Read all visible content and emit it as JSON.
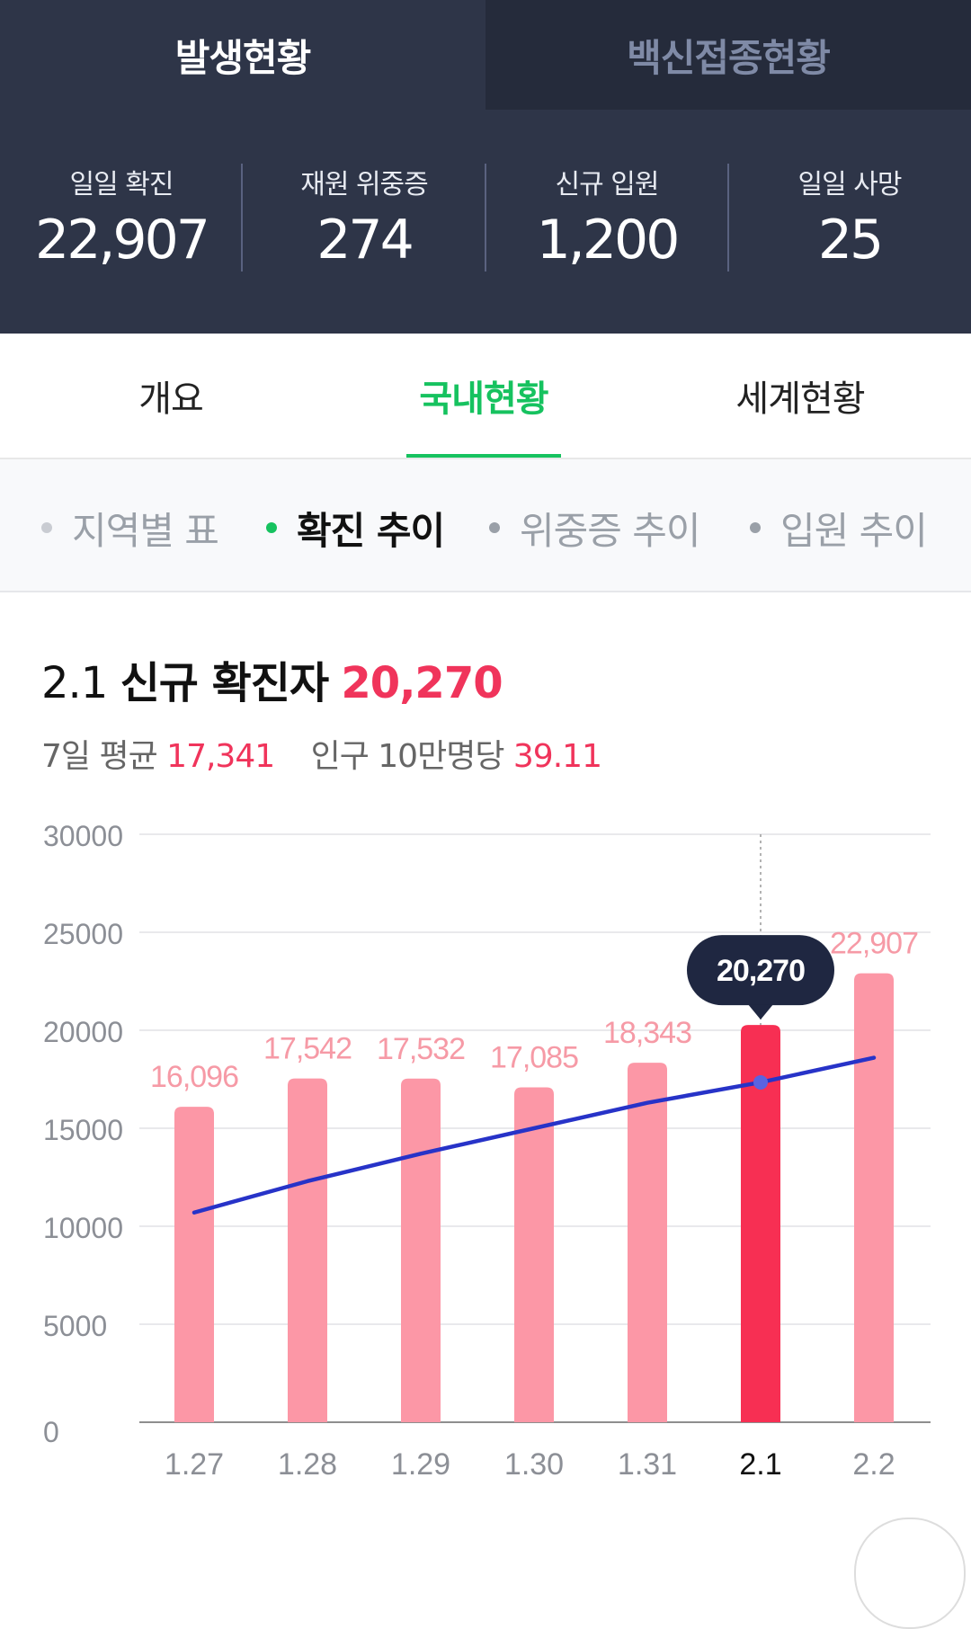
{
  "top_tabs": {
    "active": "발생현황",
    "inactive": "백신접종현황"
  },
  "stats": [
    {
      "label": "일일 확진",
      "value": "22,907"
    },
    {
      "label": "재원 위중증",
      "value": "274"
    },
    {
      "label": "신규 입원",
      "value": "1,200"
    },
    {
      "label": "일일 사망",
      "value": "25"
    }
  ],
  "section_tabs": {
    "items": [
      "개요",
      "국내현황",
      "세계현황"
    ],
    "active_index": 1
  },
  "sub_tabs": {
    "items": [
      "지역별 표",
      "확진 추이",
      "위중증 추이",
      "입원 추이"
    ],
    "active_index": 1
  },
  "headline": {
    "date": "2.1",
    "label": "신규 확진자",
    "value": "20,270",
    "avg_label": "7일 평균",
    "avg_value": "17,341",
    "per_label": "인구 10만명당",
    "per_value": "39.11"
  },
  "colors": {
    "bar": "#fc97a6",
    "bar_selected": "#f72f53",
    "avg_line": "#2733c8",
    "accent_green": "#16c25f",
    "tooltip_bg": "#1f2741",
    "label_pink": "#f69aa6"
  },
  "chart_data": {
    "type": "bar",
    "categories": [
      "1.27",
      "1.28",
      "1.29",
      "1.30",
      "1.31",
      "2.1",
      "2.2"
    ],
    "values": [
      16096,
      17542,
      17532,
      17085,
      18343,
      20270,
      22907
    ],
    "value_labels": [
      "16,096",
      "17,542",
      "17,532",
      "17,085",
      "18,343",
      "20,270",
      "22,907"
    ],
    "selected_index": 5,
    "tooltip_value": "20,270",
    "moving_average": [
      10700,
      12300,
      13700,
      15000,
      16300,
      17341,
      18600
    ],
    "yticks": [
      0,
      5000,
      10000,
      15000,
      20000,
      25000,
      30000
    ],
    "ylim": [
      0,
      30000
    ],
    "grid": true
  }
}
